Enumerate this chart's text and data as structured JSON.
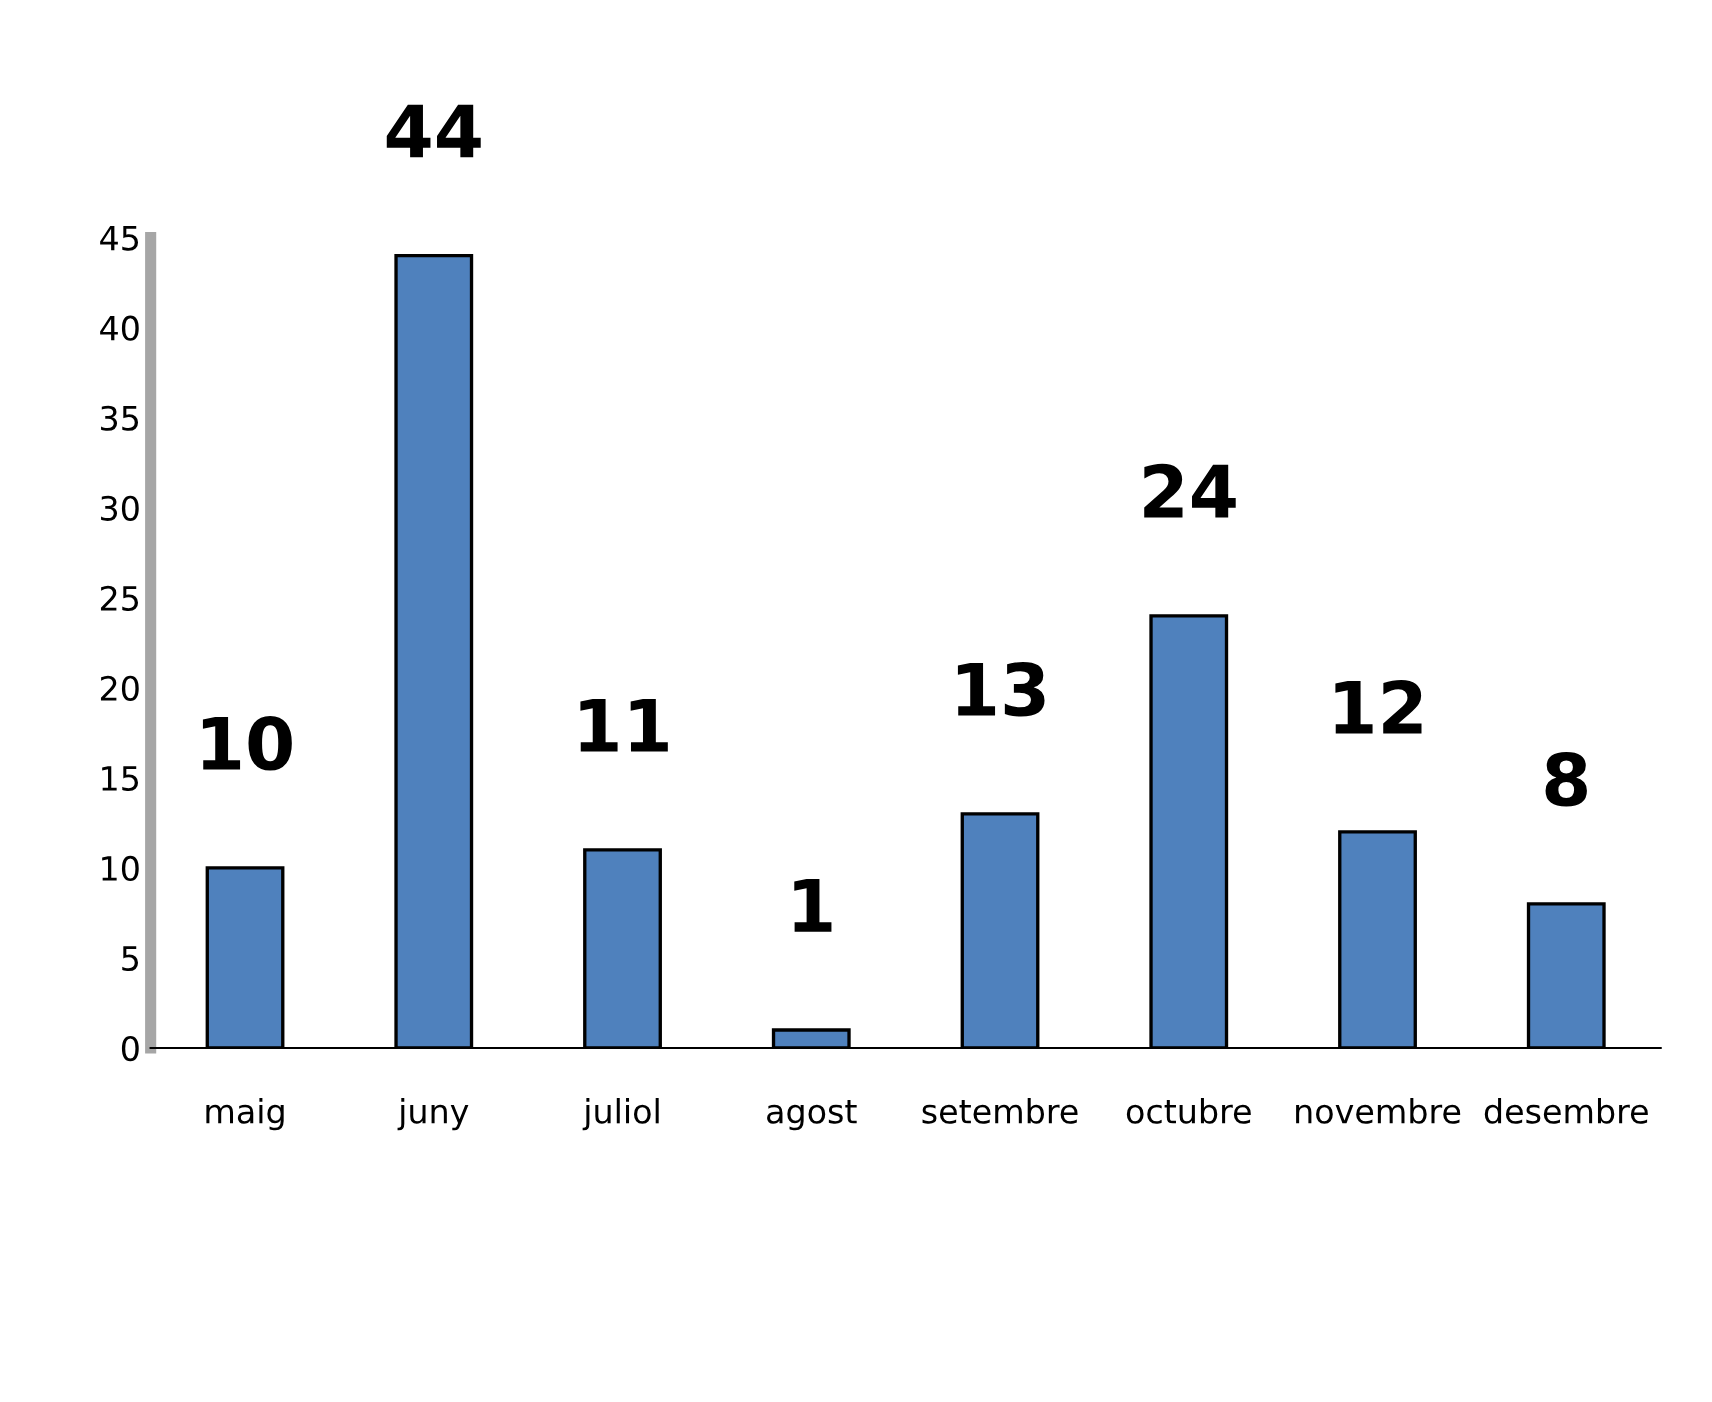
{
  "chart_data": {
    "type": "bar",
    "categories": [
      "maig",
      "juny",
      "juliol",
      "agost",
      "setembre",
      "octubre",
      "novembre",
      "desembre"
    ],
    "values": [
      10,
      44,
      11,
      1,
      13,
      24,
      12,
      8
    ],
    "color": "#4f81bd",
    "ylim": [
      0,
      45
    ],
    "yticks": [
      0,
      5,
      10,
      15,
      20,
      25,
      30,
      35,
      40,
      45
    ],
    "data_labels": true,
    "grid": false,
    "legend": false
  }
}
